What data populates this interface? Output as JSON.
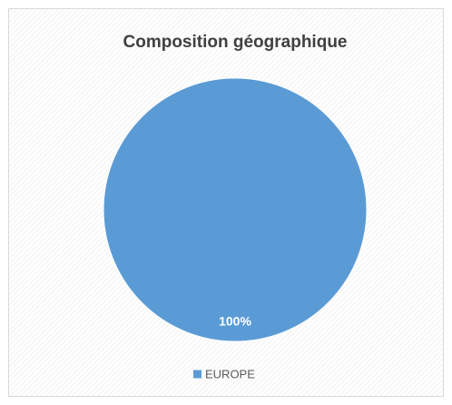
{
  "chart_data": {
    "type": "pie",
    "title": "Composition géographique",
    "categories": [
      "EUROPE"
    ],
    "values": [
      100
    ],
    "value_labels": [
      "100%"
    ],
    "colors": [
      "#5b9bd5"
    ],
    "legend": "bottom"
  }
}
